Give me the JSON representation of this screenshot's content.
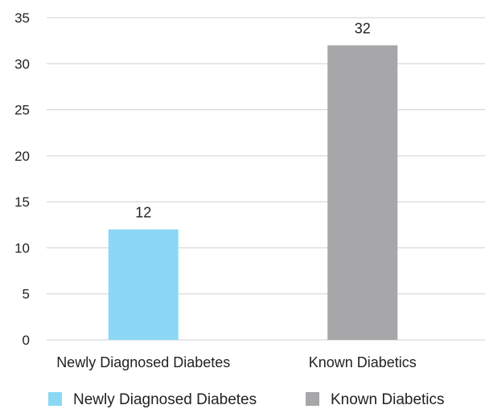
{
  "chart_data": {
    "type": "bar",
    "categories": [
      "Newly Diagnosed Diabetes",
      "Known Diabetics"
    ],
    "series": [
      {
        "name": "Newly Diagnosed Diabetes",
        "values": [
          12,
          null
        ],
        "color": "#8AD8F5"
      },
      {
        "name": "Known Diabetics",
        "values": [
          null,
          32
        ],
        "color": "#A7A7AA"
      }
    ],
    "values": [
      12,
      32
    ],
    "data_labels": [
      "12",
      "32"
    ],
    "ylim": [
      0,
      35
    ],
    "yticks": [
      0,
      5,
      10,
      15,
      20,
      25,
      30,
      35
    ],
    "grid": true,
    "legend_position": "bottom",
    "title": "",
    "xlabel": "",
    "ylabel": ""
  }
}
